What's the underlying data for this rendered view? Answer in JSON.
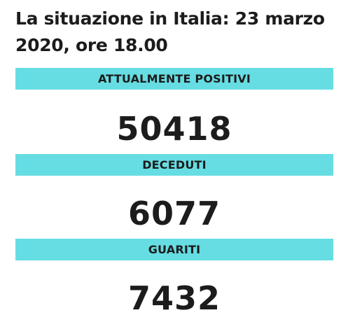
{
  "header": {
    "title": "La situazione in Italia: 23 marzo 2020, ore 18.00"
  },
  "stats": [
    {
      "label": "ATTUALMENTE POSITIVI",
      "value": "50418"
    },
    {
      "label": "DECEDUTI",
      "value": "6077"
    },
    {
      "label": "GUARITI",
      "value": "7432"
    }
  ],
  "colors": {
    "band": "#66dde3",
    "text": "#1c1c1c",
    "background": "#ffffff"
  }
}
